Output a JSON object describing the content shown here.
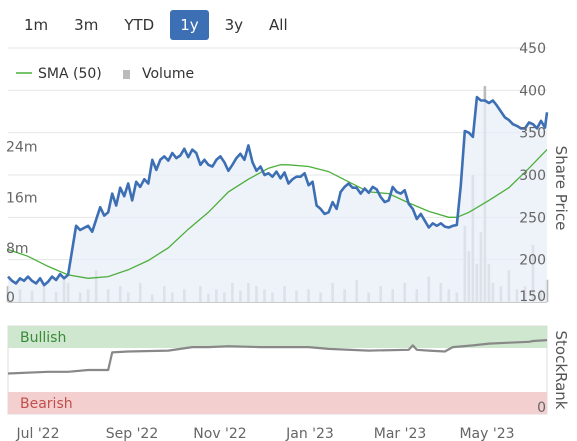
{
  "range_buttons": [
    "1m",
    "3m",
    "YTD",
    "1y",
    "3y",
    "All"
  ],
  "active_range": "1y",
  "chart_data": [
    {
      "type": "line",
      "legend": [
        {
          "name": "SMA (50)",
          "color": "#4caf3c"
        },
        {
          "name": "Volume",
          "color": "#bbbbbb"
        }
      ],
      "legend_placement": "top-left",
      "x_ticks": [
        "Jul '22",
        "Sep '22",
        "Nov '22",
        "Jan '23",
        "Mar '23",
        "May '23"
      ],
      "y_right_label": "Share Price",
      "y_right_ticks": [
        150,
        200,
        250,
        300,
        350,
        400,
        450
      ],
      "y_right_range": [
        150,
        450
      ],
      "y_left_ticks": [
        "0",
        "8m",
        "16m",
        "24m"
      ],
      "y_left_range": [
        0,
        40
      ],
      "grid": true,
      "series": [
        {
          "name": "Share Price",
          "color": "#3d6fb4",
          "values": [
            [
              0,
              180
            ],
            [
              2,
              175
            ],
            [
              4,
              172
            ],
            [
              6,
              178
            ],
            [
              8,
              175
            ],
            [
              10,
              180
            ],
            [
              12,
              175
            ],
            [
              14,
              172
            ],
            [
              16,
              178
            ],
            [
              18,
              170
            ],
            [
              20,
              174
            ],
            [
              22,
              180
            ],
            [
              24,
              176
            ],
            [
              26,
              183
            ],
            [
              28,
              178
            ],
            [
              30,
              182
            ],
            [
              34,
              240
            ],
            [
              36,
              235
            ],
            [
              40,
              240
            ],
            [
              42,
              233
            ],
            [
              46,
              262
            ],
            [
              48,
              252
            ],
            [
              50,
              256
            ],
            [
              52,
              278
            ],
            [
              54,
              264
            ],
            [
              56,
              285
            ],
            [
              58,
              275
            ],
            [
              60,
              290
            ],
            [
              62,
              270
            ],
            [
              64,
              292
            ],
            [
              66,
              286
            ],
            [
              68,
              295
            ],
            [
              70,
              290
            ],
            [
              72,
              318
            ],
            [
              74,
              306
            ],
            [
              76,
              318
            ],
            [
              78,
              322
            ],
            [
              80,
              317
            ],
            [
              82,
              326
            ],
            [
              84,
              320
            ],
            [
              86,
              323
            ],
            [
              88,
              331
            ],
            [
              90,
              321
            ],
            [
              92,
              330
            ],
            [
              94,
              326
            ],
            [
              96,
              312
            ],
            [
              98,
              318
            ],
            [
              100,
              312
            ],
            [
              102,
              310
            ],
            [
              104,
              318
            ],
            [
              106,
              322
            ],
            [
              108,
              315
            ],
            [
              110,
              305
            ],
            [
              112,
              312
            ],
            [
              114,
              320
            ],
            [
              116,
              325
            ],
            [
              118,
              318
            ],
            [
              120,
              335
            ],
            [
              122,
              315
            ],
            [
              124,
              305
            ],
            [
              126,
              310
            ],
            [
              128,
              300
            ],
            [
              130,
              302
            ],
            [
              132,
              298
            ],
            [
              134,
              304
            ],
            [
              136,
              296
            ],
            [
              138,
              303
            ],
            [
              140,
              290
            ],
            [
              142,
              295
            ],
            [
              144,
              298
            ],
            [
              146,
              298
            ],
            [
              148,
              302
            ],
            [
              150,
              288
            ],
            [
              152,
              292
            ],
            [
              154,
              264
            ],
            [
              156,
              260
            ],
            [
              158,
              254
            ],
            [
              160,
              256
            ],
            [
              162,
              268
            ],
            [
              164,
              260
            ],
            [
              166,
              280
            ],
            [
              168,
              286
            ],
            [
              170,
              290
            ],
            [
              172,
              285
            ],
            [
              174,
              285
            ],
            [
              176,
              278
            ],
            [
              178,
              284
            ],
            [
              180,
              279
            ],
            [
              182,
              286
            ],
            [
              184,
              283
            ],
            [
              186,
              274
            ],
            [
              188,
              268
            ],
            [
              190,
              270
            ],
            [
              192,
              286
            ],
            [
              194,
              280
            ],
            [
              196,
              278
            ],
            [
              198,
              282
            ],
            [
              200,
              266
            ],
            [
              202,
              260
            ],
            [
              204,
              248
            ],
            [
              206,
              254
            ],
            [
              208,
              246
            ],
            [
              210,
              238
            ],
            [
              212,
              243
            ],
            [
              214,
              240
            ],
            [
              216,
              243
            ],
            [
              218,
              239
            ],
            [
              220,
              238
            ],
            [
              222,
              240
            ],
            [
              224,
              241
            ],
            [
              226,
              288
            ],
            [
              228,
              352
            ],
            [
              230,
              350
            ],
            [
              232,
              345
            ],
            [
              234,
              392
            ],
            [
              236,
              388
            ],
            [
              238,
              388
            ],
            [
              240,
              385
            ],
            [
              242,
              388
            ],
            [
              244,
              382
            ],
            [
              246,
              375
            ],
            [
              248,
              368
            ],
            [
              250,
              365
            ],
            [
              252,
              360
            ],
            [
              254,
              358
            ],
            [
              256,
              355
            ],
            [
              258,
              355
            ],
            [
              260,
              362
            ],
            [
              262,
              360
            ],
            [
              264,
              355
            ],
            [
              266,
              364
            ],
            [
              268,
              356
            ],
            [
              269,
              374
            ]
          ]
        },
        {
          "name": "SMA (50)",
          "color": "#4caf3c",
          "values": [
            [
              0,
              212
            ],
            [
              10,
              204
            ],
            [
              20,
              192
            ],
            [
              30,
              182
            ],
            [
              40,
              178
            ],
            [
              50,
              180
            ],
            [
              60,
              188
            ],
            [
              70,
              199
            ],
            [
              80,
              214
            ],
            [
              90,
              236
            ],
            [
              100,
              256
            ],
            [
              110,
              280
            ],
            [
              120,
              295
            ],
            [
              130,
              308
            ],
            [
              136,
              312
            ],
            [
              140,
              312
            ],
            [
              150,
              310
            ],
            [
              160,
              304
            ],
            [
              170,
              292
            ],
            [
              180,
              280
            ],
            [
              190,
              278
            ],
            [
              200,
              267
            ],
            [
              210,
              257
            ],
            [
              220,
              250
            ],
            [
              224,
              250
            ],
            [
              230,
              256
            ],
            [
              240,
              270
            ],
            [
              250,
              285
            ],
            [
              260,
              308
            ],
            [
              269,
              330
            ]
          ]
        },
        {
          "name": "Volume",
          "color": "#bbbbbb",
          "values": [
            [
              0,
              2.5
            ],
            [
              6,
              2
            ],
            [
              12,
              1.8
            ],
            [
              18,
              2.5
            ],
            [
              24,
              1.6
            ],
            [
              28,
              3.5
            ],
            [
              30,
              3
            ],
            [
              36,
              1.5
            ],
            [
              40,
              2
            ],
            [
              44,
              5
            ],
            [
              50,
              2
            ],
            [
              56,
              2.5
            ],
            [
              60,
              1.5
            ],
            [
              66,
              3
            ],
            [
              72,
              1.2
            ],
            [
              78,
              2.5
            ],
            [
              82,
              1.5
            ],
            [
              88,
              2
            ],
            [
              96,
              2.5
            ],
            [
              100,
              1.3
            ],
            [
              104,
              2
            ],
            [
              108,
              1.5
            ],
            [
              112,
              3
            ],
            [
              116,
              1.8
            ],
            [
              120,
              3
            ],
            [
              124,
              2.5
            ],
            [
              128,
              2
            ],
            [
              132,
              1.5
            ],
            [
              138,
              2.5
            ],
            [
              144,
              1.8
            ],
            [
              150,
              2
            ],
            [
              156,
              1.5
            ],
            [
              162,
              3
            ],
            [
              168,
              2
            ],
            [
              174,
              3.5
            ],
            [
              180,
              1.5
            ],
            [
              186,
              2.5
            ],
            [
              192,
              2
            ],
            [
              198,
              3
            ],
            [
              204,
              2
            ],
            [
              210,
              4
            ],
            [
              216,
              3
            ],
            [
              220,
              2
            ],
            [
              224,
              1.5
            ],
            [
              228,
              12
            ],
            [
              230,
              8
            ],
            [
              232,
              20
            ],
            [
              234,
              6
            ],
            [
              236,
              11
            ],
            [
              238,
              34
            ],
            [
              240,
              6
            ],
            [
              242,
              3
            ],
            [
              246,
              2.5
            ],
            [
              250,
              5
            ],
            [
              254,
              2
            ],
            [
              258,
              2.5
            ],
            [
              262,
              9
            ],
            [
              266,
              2
            ],
            [
              269,
              3.5
            ]
          ]
        }
      ]
    },
    {
      "type": "line",
      "y_right_label": "StockRank",
      "y_right_ticks": [
        0
      ],
      "y_right_range": [
        0,
        100
      ],
      "bands": [
        {
          "label": "Bullish",
          "range": [
            75,
            100
          ],
          "color": "#cfe7cf",
          "text_color": "#3a8a3a"
        },
        {
          "label": "Bearish",
          "range": [
            0,
            25
          ],
          "color": "#f4cfcf",
          "text_color": "#c0504d"
        }
      ],
      "series": [
        {
          "name": "StockRank",
          "color": "#888888",
          "values": [
            [
              0,
              46
            ],
            [
              20,
              48
            ],
            [
              30,
              48
            ],
            [
              40,
              50
            ],
            [
              50,
              50
            ],
            [
              52,
              70
            ],
            [
              60,
              71
            ],
            [
              80,
              72
            ],
            [
              92,
              76
            ],
            [
              100,
              76
            ],
            [
              110,
              77
            ],
            [
              126,
              76
            ],
            [
              140,
              76
            ],
            [
              150,
              76
            ],
            [
              160,
              74
            ],
            [
              180,
              72
            ],
            [
              200,
              73
            ],
            [
              202,
              78
            ],
            [
              204,
              73
            ],
            [
              210,
              72
            ],
            [
              218,
              71
            ],
            [
              222,
              76
            ],
            [
              232,
              78
            ],
            [
              240,
              80
            ],
            [
              250,
              81
            ],
            [
              260,
              82
            ],
            [
              262,
              83
            ],
            [
              269,
              84
            ]
          ]
        }
      ]
    }
  ]
}
